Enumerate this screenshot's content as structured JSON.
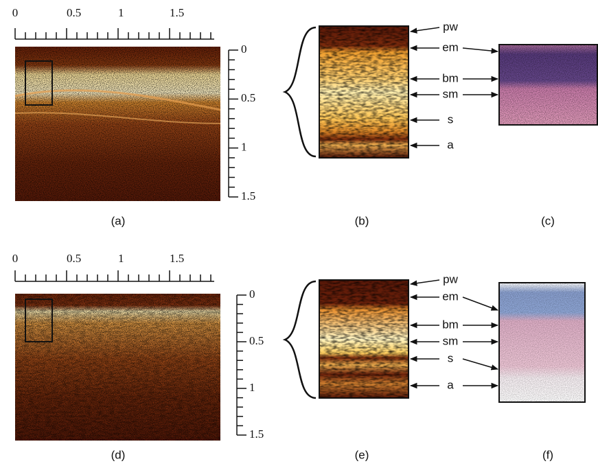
{
  "rows": [
    {
      "top_scale": [
        "0",
        "0.5",
        "1",
        "1.5"
      ],
      "side_scale": [
        "0",
        "0.5",
        "1",
        "1.5"
      ],
      "layers": [
        "pw",
        "em",
        "bm",
        "sm",
        "s",
        "a"
      ],
      "captions": [
        "(a)",
        "(b)",
        "(c)"
      ]
    },
    {
      "top_scale": [
        "0",
        "0.5",
        "1",
        "1.5"
      ],
      "side_scale": [
        "0",
        "0.5",
        "1",
        "1.5"
      ],
      "layers": [
        "pw",
        "em",
        "bm",
        "sm",
        "s",
        "a"
      ],
      "captions": [
        "(d)",
        "(e)",
        "(f)"
      ]
    }
  ]
}
